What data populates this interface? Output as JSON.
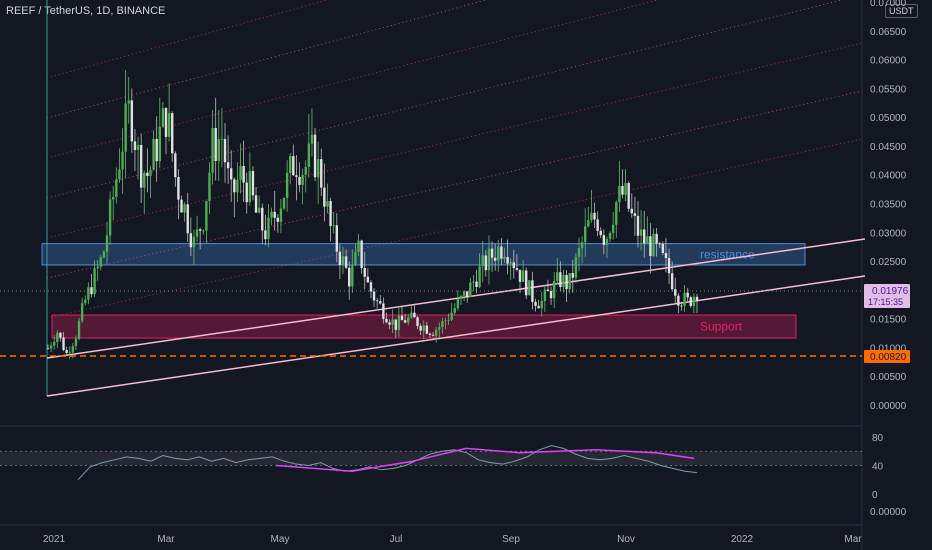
{
  "header": {
    "symbol_line": "REEF / TetherUS, 1D, BINANCE",
    "currency": "USDT"
  },
  "chart_data": {
    "type": "candlestick",
    "price_axis": {
      "ticks": [
        "0.07000",
        "0.06500",
        "0.06000",
        "0.05500",
        "0.05000",
        "0.04500",
        "0.04000",
        "0.03500",
        "0.03000",
        "0.02500",
        "0.02000",
        "0.01500",
        "0.01000",
        "0.00500",
        "0.00000"
      ],
      "range": [
        0,
        0.07
      ]
    },
    "time_axis": {
      "labels": [
        "2021",
        "Mar",
        "May",
        "Jul",
        "Sep",
        "Nov",
        "2022",
        "Mar"
      ]
    },
    "last_price": {
      "value": "0.01976",
      "countdown": "17:15:35"
    },
    "horizontal_level": {
      "value": "0.00820"
    },
    "zones": [
      {
        "label": "resistance",
        "from": 0.0245,
        "to": 0.0282,
        "color": "#4a90e2"
      },
      {
        "label": "Support",
        "from": 0.0118,
        "to": 0.0158,
        "color": "#e91e63"
      }
    ],
    "price_path": [
      0.01,
      0.013,
      0.009,
      0.012,
      0.018,
      0.022,
      0.026,
      0.035,
      0.045,
      0.052,
      0.042,
      0.04,
      0.046,
      0.051,
      0.039,
      0.034,
      0.028,
      0.033,
      0.045,
      0.047,
      0.036,
      0.04,
      0.038,
      0.032,
      0.03,
      0.034,
      0.038,
      0.043,
      0.041,
      0.044,
      0.039,
      0.03,
      0.026,
      0.022,
      0.027,
      0.021,
      0.018,
      0.016,
      0.014,
      0.015,
      0.015,
      0.014,
      0.013,
      0.014,
      0.016,
      0.018,
      0.02,
      0.023,
      0.025,
      0.027,
      0.028,
      0.025,
      0.022,
      0.019,
      0.018,
      0.02,
      0.022,
      0.021,
      0.026,
      0.031,
      0.033,
      0.029,
      0.035,
      0.037,
      0.032,
      0.029,
      0.028,
      0.026,
      0.023,
      0.019,
      0.018,
      0.02
    ],
    "oscillator": {
      "ticks": [
        "80",
        "40",
        "0"
      ],
      "range": [
        0,
        80
      ],
      "band": [
        40,
        60
      ],
      "values": [
        20,
        38,
        44,
        48,
        52,
        50,
        46,
        54,
        50,
        48,
        52,
        46,
        50,
        44,
        48,
        50,
        52,
        46,
        42,
        40,
        44,
        36,
        32,
        34,
        38,
        34,
        36,
        40,
        48,
        56,
        60,
        62,
        58,
        48,
        44,
        42,
        46,
        52,
        62,
        68,
        64,
        56,
        50,
        48,
        50,
        54,
        50,
        46,
        40,
        36,
        32,
        30
      ],
      "ma_points": [
        [
          0.3,
          40
        ],
        [
          0.4,
          32
        ],
        [
          0.48,
          46
        ],
        [
          0.55,
          64
        ],
        [
          0.62,
          58
        ],
        [
          0.72,
          62
        ],
        [
          0.8,
          58
        ],
        [
          0.85,
          50
        ]
      ],
      "axis_value": "0.00000"
    }
  }
}
